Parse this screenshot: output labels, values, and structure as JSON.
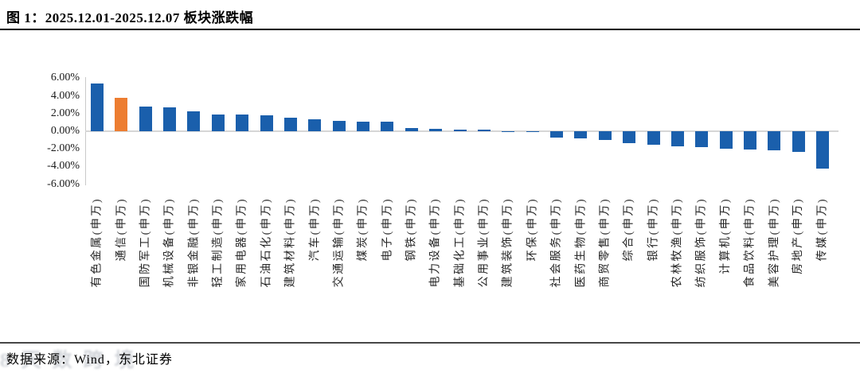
{
  "header": {
    "title": "图  1：2025.12.01-2025.12.07 板块涨跌幅"
  },
  "footer": {
    "source": "数据来源：Wind，东北证券",
    "watermark_artifact": "8天数跨境"
  },
  "chart_data": {
    "type": "bar",
    "title": "2025.12.01-2025.12.07 板块涨跌幅",
    "categories": [
      "有色金属(申万)",
      "通信(申万)",
      "国防军工(申万)",
      "机械设备(申万)",
      "非银金融(申万)",
      "轻工制造(申万)",
      "家用电器(申万)",
      "石油石化(申万)",
      "建筑材料(申万)",
      "汽车(申万)",
      "交通运输(申万)",
      "煤炭(申万)",
      "电子(申万)",
      "钢铁(申万)",
      "电力设备(申万)",
      "基础化工(申万)",
      "公用事业(申万)",
      "建筑装饰(申万)",
      "环保(申万)",
      "社会服务(申万)",
      "医药生物(申万)",
      "商贸零售(申万)",
      "综合(申万)",
      "银行(申万)",
      "农林牧渔(申万)",
      "纺织服饰(申万)",
      "计算机(申万)",
      "食品饮料(申万)",
      "美容护理(申万)",
      "房地产(申万)",
      "传媒(申万)"
    ],
    "values": [
      5.45,
      3.75,
      2.78,
      2.72,
      2.25,
      1.9,
      1.86,
      1.8,
      1.5,
      1.32,
      1.18,
      1.1,
      1.05,
      0.38,
      0.28,
      0.22,
      0.18,
      0.04,
      -0.1,
      -0.75,
      -0.8,
      -1.0,
      -1.35,
      -1.55,
      -1.75,
      -1.82,
      -1.95,
      -2.1,
      -2.2,
      -2.35,
      -4.2
    ],
    "highlight_index": 1,
    "bar_color": "#1A5FAC",
    "highlight_color": "#ED7D31",
    "ylim": [
      -6,
      6
    ],
    "ytick_labels": [
      "6.00%",
      "4.00%",
      "2.00%",
      "0.00%",
      "-2.00%",
      "-4.00%",
      "-6.00%"
    ],
    "ytick_values": [
      6,
      4,
      2,
      0,
      -2,
      -4,
      -6
    ],
    "xlabel": "",
    "ylabel": "",
    "grid": false,
    "legend": false
  }
}
